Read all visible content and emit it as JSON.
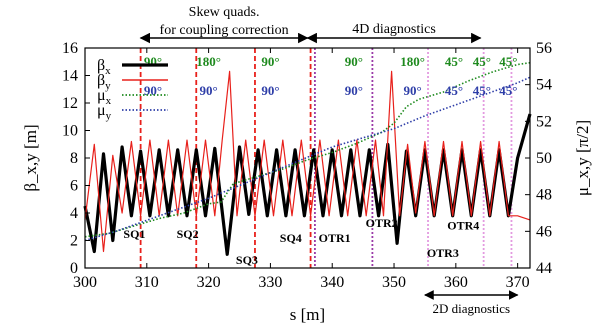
{
  "chart_data": {
    "type": "line",
    "xlabel": "s [m]",
    "ylabel_left": "β_x,y [m]",
    "ylabel_right": "μ_x,y [π/2]",
    "xlim": [
      300,
      372
    ],
    "ylim_left": [
      0,
      16
    ],
    "ylim_right": [
      44,
      56
    ],
    "x_ticks": [
      300,
      310,
      320,
      330,
      340,
      350,
      360,
      370
    ],
    "y_ticks_left": [
      0,
      2,
      4,
      6,
      8,
      10,
      12,
      14,
      16
    ],
    "y_ticks_right": [
      44,
      46,
      48,
      50,
      52,
      54,
      56
    ],
    "x_tick_labels": [
      "300",
      "310",
      "320",
      "330",
      "340",
      "350",
      "360",
      "370"
    ],
    "y_tick_labels_left": [
      "0",
      "2",
      "4",
      "6",
      "8",
      "10",
      "12",
      "14",
      "16"
    ],
    "y_tick_labels_right": [
      "44",
      "46",
      "48",
      "50",
      "52",
      "54",
      "56"
    ],
    "legend": {
      "position": "top-left",
      "entries": [
        {
          "sym": "β",
          "sub": "x"
        },
        {
          "sym": "β",
          "sub": "y"
        },
        {
          "sym": "μ",
          "sub": "x"
        },
        {
          "sym": "μ",
          "sub": "y"
        }
      ]
    },
    "series": [
      {
        "axis": "left",
        "color": "#000000",
        "style": "solid-thick",
        "x": [
          300,
          301.5,
          303,
          304.5,
          306,
          307.5,
          309,
          310.5,
          312,
          313.5,
          315,
          316.5,
          318,
          319.5,
          321,
          323,
          325,
          326.5,
          328,
          329.5,
          331,
          332.5,
          334,
          335.5,
          337,
          338.5,
          340,
          341.5,
          343,
          344.5,
          346,
          347.5,
          349,
          350.5,
          352,
          353.5,
          355,
          356.5,
          358,
          359.5,
          361,
          362.5,
          364,
          365.5,
          367,
          368.5,
          370,
          372
        ],
        "y": [
          4.5,
          1.2,
          8.3,
          2.0,
          8.8,
          3.8,
          8.5,
          3.8,
          8.6,
          3.8,
          8.6,
          3.8,
          8.6,
          3.8,
          8.7,
          1.0,
          8.8,
          3.9,
          8.6,
          3.8,
          8.6,
          3.8,
          8.6,
          3.8,
          8.6,
          3.8,
          8.6,
          3.8,
          8.6,
          3.8,
          8.6,
          3.8,
          9.0,
          1.8,
          8.5,
          3.8,
          8.6,
          3.8,
          8.6,
          3.8,
          8.6,
          3.8,
          8.6,
          3.8,
          8.6,
          3.8,
          8.0,
          11.2
        ]
      },
      {
        "axis": "left",
        "color": "#e8201b",
        "style": "solid",
        "x": [
          300,
          301.5,
          303,
          304.5,
          306,
          307.5,
          309,
          310.5,
          312,
          313.5,
          315,
          316.5,
          318,
          319.5,
          321,
          322.2,
          323.4,
          324.6,
          326,
          327.5,
          329,
          330.5,
          332,
          333.5,
          335,
          336.5,
          338,
          339.5,
          341,
          342.5,
          344,
          345.5,
          347,
          348.3,
          349.6,
          350.9,
          352.2,
          353.5,
          355,
          356.5,
          358,
          359.5,
          361,
          362.5,
          364,
          365.5,
          367,
          368.5,
          370,
          372
        ],
        "y": [
          3.5,
          9.0,
          1.2,
          8.2,
          4.0,
          9.2,
          3.8,
          9.3,
          3.8,
          9.3,
          3.8,
          9.3,
          3.8,
          9.3,
          3.8,
          9.3,
          14.3,
          3.8,
          9.3,
          3.8,
          9.3,
          3.8,
          9.3,
          3.8,
          9.3,
          3.8,
          9.3,
          3.8,
          9.3,
          3.8,
          9.3,
          3.8,
          9.3,
          3.8,
          14.3,
          3.8,
          9.0,
          4.0,
          9.2,
          3.8,
          9.2,
          3.8,
          9.2,
          3.8,
          9.2,
          3.8,
          9.2,
          3.8,
          3.8,
          3.5
        ]
      },
      {
        "axis": "right",
        "color": "#1e8a1e",
        "style": "dotted",
        "x": [
          300,
          304,
          308,
          312,
          316,
          320,
          322,
          324,
          328,
          332,
          336,
          340,
          344,
          348,
          350,
          352,
          354,
          358,
          362,
          366,
          370,
          372
        ],
        "y": [
          45.7,
          45.9,
          46.3,
          46.7,
          47.0,
          47.5,
          47.6,
          48.6,
          49.0,
          49.4,
          49.9,
          50.3,
          50.8,
          51.4,
          51.9,
          52.8,
          53.2,
          53.6,
          54.2,
          54.7,
          55.1,
          55.2
        ]
      },
      {
        "axis": "right",
        "color": "#2e3ea8",
        "style": "dotted",
        "x": [
          300,
          305,
          310,
          315,
          320,
          325,
          330,
          335,
          340,
          345,
          350,
          355,
          360,
          365,
          370,
          372
        ],
        "y": [
          45.5,
          46.0,
          46.6,
          47.2,
          47.8,
          48.5,
          49.2,
          49.9,
          50.6,
          51.1,
          51.6,
          52.3,
          52.9,
          53.5,
          54.1,
          54.4
        ]
      }
    ],
    "vlines": [
      {
        "x": 309.0,
        "color": "#e8201b",
        "style": "dashed",
        "label": "SQ1"
      },
      {
        "x": 318.0,
        "color": "#e8201b",
        "style": "dashed",
        "label": "SQ2"
      },
      {
        "x": 327.5,
        "color": "#e8201b",
        "style": "dashed",
        "label": "SQ3"
      },
      {
        "x": 336.5,
        "color": "#e8201b",
        "style": "dashed",
        "label": "SQ4"
      },
      {
        "x": 337.2,
        "color": "#9a3aa8",
        "style": "dotted",
        "label": "OTR1"
      },
      {
        "x": 346.5,
        "color": "#9a3aa8",
        "style": "dotted",
        "label": "OTR2"
      },
      {
        "x": 355.5,
        "color": "#e39ae0",
        "style": "dotted",
        "label": "OTR3"
      },
      {
        "x": 364.5,
        "color": "#e39ae0",
        "style": "dotted",
        "label": "OTR4"
      },
      {
        "x": 369.0,
        "color": "#e39ae0",
        "style": "dotted",
        "label": ""
      }
    ],
    "element_labels": [
      {
        "text": "SQ1",
        "x": 308.0,
        "y": 2.2
      },
      {
        "text": "SQ2",
        "x": 316.6,
        "y": 2.2
      },
      {
        "text": "SQ3",
        "x": 326.2,
        "y": 0.3
      },
      {
        "text": "SQ4",
        "x": 333.3,
        "y": 1.9
      },
      {
        "text": "OTR1",
        "x": 340.4,
        "y": 1.9
      },
      {
        "text": "OTR2",
        "x": 348.0,
        "y": 3.0
      },
      {
        "text": "OTR3",
        "x": 357.9,
        "y": 0.8
      },
      {
        "text": "OTR4",
        "x": 361.2,
        "y": 2.8
      }
    ],
    "phase_labels": [
      {
        "text": "90°",
        "x": 311.0,
        "y": 14.7,
        "color": "#1e8a1e"
      },
      {
        "text": "180°",
        "x": 320.0,
        "y": 14.7,
        "color": "#1e8a1e"
      },
      {
        "text": "90°",
        "x": 330.0,
        "y": 14.7,
        "color": "#1e8a1e"
      },
      {
        "text": "90°",
        "x": 343.5,
        "y": 14.7,
        "color": "#1e8a1e"
      },
      {
        "text": "180°",
        "x": 353.0,
        "y": 14.7,
        "color": "#1e8a1e"
      },
      {
        "text": "45°",
        "x": 359.7,
        "y": 14.7,
        "color": "#1e8a1e"
      },
      {
        "text": "45°",
        "x": 364.2,
        "y": 14.7,
        "color": "#1e8a1e"
      },
      {
        "text": "45°",
        "x": 368.5,
        "y": 14.7,
        "color": "#1e8a1e"
      },
      {
        "text": "90°",
        "x": 311.0,
        "y": 12.6,
        "color": "#2e3ea8"
      },
      {
        "text": "90°",
        "x": 320.0,
        "y": 12.6,
        "color": "#2e3ea8"
      },
      {
        "text": "90°",
        "x": 330.0,
        "y": 12.6,
        "color": "#2e3ea8"
      },
      {
        "text": "90°",
        "x": 343.5,
        "y": 12.6,
        "color": "#2e3ea8"
      },
      {
        "text": "90°",
        "x": 353.0,
        "y": 12.6,
        "color": "#2e3ea8"
      },
      {
        "text": "45°",
        "x": 359.7,
        "y": 12.6,
        "color": "#2e3ea8"
      },
      {
        "text": "45°",
        "x": 364.2,
        "y": 12.6,
        "color": "#2e3ea8"
      },
      {
        "text": "45°",
        "x": 368.5,
        "y": 12.6,
        "color": "#2e3ea8"
      }
    ],
    "annotations": [
      {
        "name": "skew-quads",
        "lines": [
          "Skew quads.",
          "for coupling correction"
        ],
        "x_from": 309.0,
        "x_to": 336.0,
        "position": "top"
      },
      {
        "name": "4d-diagnostics",
        "lines": [
          "4D diagnostics"
        ],
        "x_from": 336.0,
        "x_to": 364.0,
        "position": "top"
      },
      {
        "name": "2d-diagnostics",
        "lines": [
          "2D diagnostics"
        ],
        "x_from": 355.0,
        "x_to": 370.0,
        "position": "bottom"
      }
    ]
  }
}
